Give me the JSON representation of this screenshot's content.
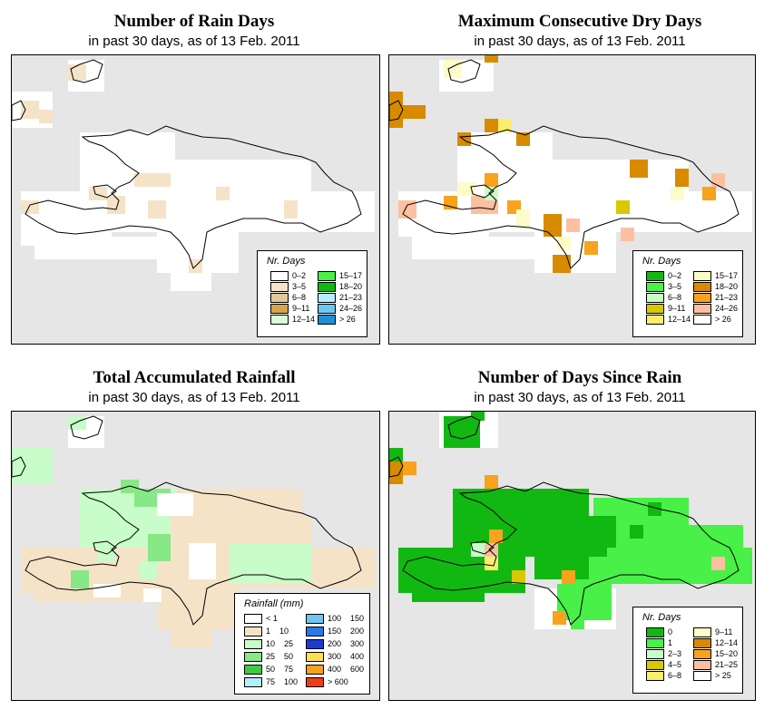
{
  "panels": [
    {
      "title": "Number of Rain Days",
      "subtitle": "in past 30 days, as of  13 Feb. 2011",
      "legend": {
        "title": "Nr. Days",
        "items": [
          {
            "label": "0–2",
            "color": "#ffffff"
          },
          {
            "label": "3–5",
            "color": "#f5e3c8"
          },
          {
            "label": "6–8",
            "color": "#e0c89a"
          },
          {
            "label": "9–11",
            "color": "#d2a54e"
          },
          {
            "label": "12–14",
            "color": "#d8fcd8"
          },
          {
            "label": "15–17",
            "color": "#48f048"
          },
          {
            "label": "18–20",
            "color": "#12b812"
          },
          {
            "label": "21–23",
            "color": "#b4eefc"
          },
          {
            "label": "24–26",
            "color": "#6ec6f0"
          },
          {
            "label": "> 26",
            "color": "#1e90d8"
          }
        ]
      }
    },
    {
      "title": "Maximum Consecutive Dry Days",
      "subtitle": "in past 30 days, as of  13 Feb. 2011",
      "legend": {
        "title": "Nr. Days",
        "items": [
          {
            "label": "0–2",
            "color": "#12b812"
          },
          {
            "label": "3–5",
            "color": "#48f048"
          },
          {
            "label": "6–8",
            "color": "#c8fcc8"
          },
          {
            "label": "9–11",
            "color": "#d8c800"
          },
          {
            "label": "12–14",
            "color": "#fcee6c"
          },
          {
            "label": "15–17",
            "color": "#fcfcc8"
          },
          {
            "label": "18–20",
            "color": "#d88a00"
          },
          {
            "label": "21–23",
            "color": "#f8a21e"
          },
          {
            "label": "24–26",
            "color": "#fcc0a0"
          },
          {
            "label": "> 26",
            "color": "#ffffff"
          }
        ]
      }
    },
    {
      "title": "Total Accumulated Rainfall",
      "subtitle": "in past 30 days, as of  13 Feb. 2011",
      "legend": {
        "title": "Rainfall (mm)",
        "items": [
          {
            "label": "< 1",
            "color": "#ffffff"
          },
          {
            "label": "1    10",
            "color": "#f5e3c8"
          },
          {
            "label": "10    25",
            "color": "#c8fcc8"
          },
          {
            "label": "25    50",
            "color": "#86e886"
          },
          {
            "label": "50    75",
            "color": "#3ccc3c"
          },
          {
            "label": "75    100",
            "color": "#b4eefc"
          },
          {
            "label": "100    150",
            "color": "#6ec6f0"
          },
          {
            "label": "150    200",
            "color": "#2a78e8"
          },
          {
            "label": "200    300",
            "color": "#1a3cd0"
          },
          {
            "label": "300    400",
            "color": "#fce050"
          },
          {
            "label": "400    600",
            "color": "#f8a21e"
          },
          {
            "label": "> 600",
            "color": "#f03c14"
          }
        ]
      }
    },
    {
      "title": "Number of Days Since Rain",
      "subtitle": "in past 30 days, as of  13 Feb. 2011",
      "legend": {
        "title": "Nr. Days",
        "items": [
          {
            "label": "0",
            "color": "#12b812"
          },
          {
            "label": "1",
            "color": "#48f048"
          },
          {
            "label": "2–3",
            "color": "#c8fcc8"
          },
          {
            "label": "4–5",
            "color": "#d8c800"
          },
          {
            "label": "6–8",
            "color": "#fcee6c"
          },
          {
            "label": "9–11",
            "color": "#fcfcc8"
          },
          {
            "label": "12–14",
            "color": "#d88a00"
          },
          {
            "label": "15–20",
            "color": "#f8a21e"
          },
          {
            "label": "21–25",
            "color": "#fcc0a0"
          },
          {
            "label": "> 25",
            "color": "#ffffff"
          }
        ]
      }
    }
  ],
  "chart_data": [
    {
      "type": "heatmap",
      "title": "Number of Rain Days",
      "subtitle": "in past 30 days, as of  13 Feb. 2011",
      "legend_title": "Nr. Days",
      "legend_placement": "bottom-right",
      "legend_labels": [
        "0–2",
        "3–5",
        "6–8",
        "9–11",
        "12–14",
        "15–17",
        "18–20",
        "21–23",
        "24–26",
        "> 26"
      ]
    },
    {
      "type": "heatmap",
      "title": "Maximum Consecutive Dry Days",
      "subtitle": "in past 30 days, as of  13 Feb. 2011",
      "legend_title": "Nr. Days",
      "legend_placement": "bottom-right",
      "legend_labels": [
        "0–2",
        "3–5",
        "6–8",
        "9–11",
        "12–14",
        "15–17",
        "18–20",
        "21–23",
        "24–26",
        "> 26"
      ]
    },
    {
      "type": "heatmap",
      "title": "Total Accumulated Rainfall",
      "subtitle": "in past 30 days, as of  13 Feb. 2011",
      "legend_title": "Rainfall (mm)",
      "legend_placement": "bottom-right",
      "legend_labels": [
        "< 1",
        "1 10",
        "10 25",
        "25 50",
        "50 75",
        "75 100",
        "100 150",
        "150 200",
        "200 300",
        "300 400",
        "400 600",
        "> 600"
      ]
    },
    {
      "type": "heatmap",
      "title": "Number of Days Since Rain",
      "subtitle": "in past 30 days, as of  13 Feb. 2011",
      "legend_title": "Nr. Days",
      "legend_placement": "bottom-right",
      "legend_labels": [
        "0",
        "1",
        "2–3",
        "4–5",
        "6–8",
        "9–11",
        "12–14",
        "15–20",
        "21–25",
        "> 25"
      ]
    }
  ]
}
